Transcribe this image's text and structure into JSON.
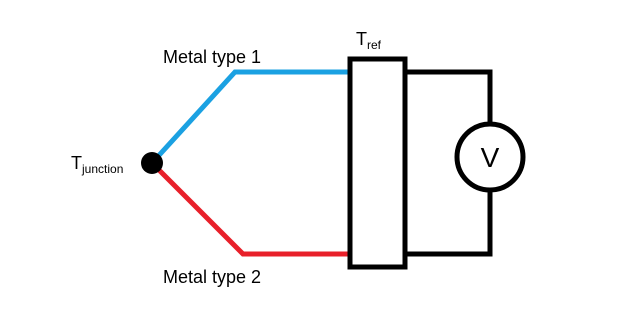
{
  "wires": {
    "top_label": "Metal type 1",
    "bottom_label": "Metal type 2"
  },
  "junction": {
    "label": {
      "main": "T",
      "sub": "junction"
    }
  },
  "reference": {
    "label": {
      "main": "T",
      "sub": "ref"
    }
  },
  "meter": {
    "label": "V"
  }
}
